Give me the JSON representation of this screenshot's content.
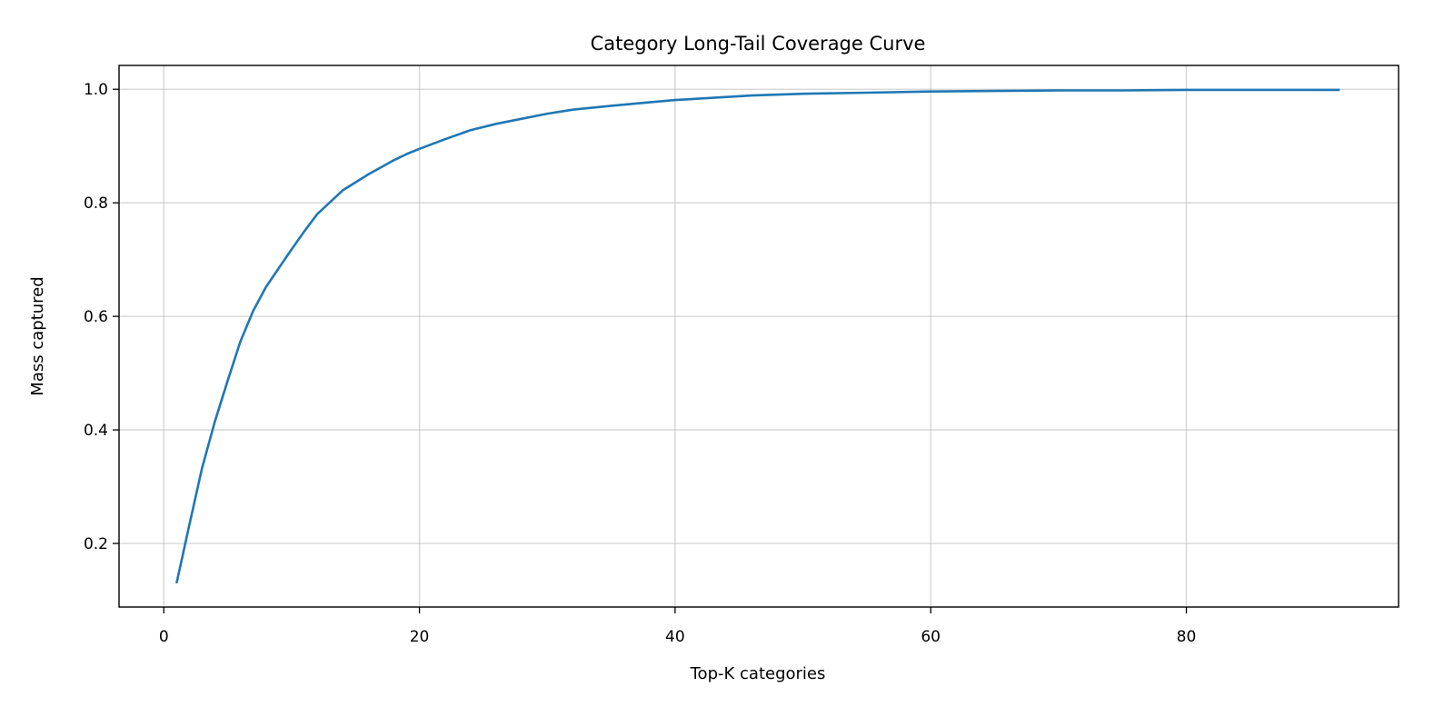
{
  "chart_data": {
    "type": "line",
    "title": "Category Long-Tail Coverage Curve",
    "xlabel": "Top-K categories",
    "ylabel": "Mass captured",
    "xlim": [
      -3.5,
      96.6
    ],
    "ylim": [
      0.088,
      1.042
    ],
    "xticks": [
      0,
      20,
      40,
      60,
      80
    ],
    "xtick_labels": [
      "0",
      "20",
      "40",
      "60",
      "80"
    ],
    "yticks": [
      0.2,
      0.4,
      0.6,
      0.8,
      1.0
    ],
    "ytick_labels": [
      "0.2",
      "0.4",
      "0.6",
      "0.8",
      "1.0"
    ],
    "grid": true,
    "series": [
      {
        "color": "#1f77b4",
        "x": [
          1,
          2,
          3,
          4,
          5,
          6,
          7,
          8,
          9,
          10,
          11,
          12,
          14,
          16,
          18,
          19,
          20,
          22,
          24,
          26,
          28,
          30,
          32,
          35,
          38,
          40,
          43,
          46,
          50,
          55,
          60,
          65,
          70,
          75,
          80,
          85,
          92
        ],
        "y": [
          0.13,
          0.233,
          0.333,
          0.415,
          0.487,
          0.556,
          0.61,
          0.652,
          0.685,
          0.718,
          0.75,
          0.78,
          0.822,
          0.85,
          0.875,
          0.886,
          0.895,
          0.912,
          0.928,
          0.939,
          0.948,
          0.957,
          0.964,
          0.971,
          0.977,
          0.981,
          0.985,
          0.989,
          0.992,
          0.994,
          0.996,
          0.997,
          0.998,
          0.998,
          0.999,
          0.999,
          0.999
        ]
      }
    ]
  }
}
